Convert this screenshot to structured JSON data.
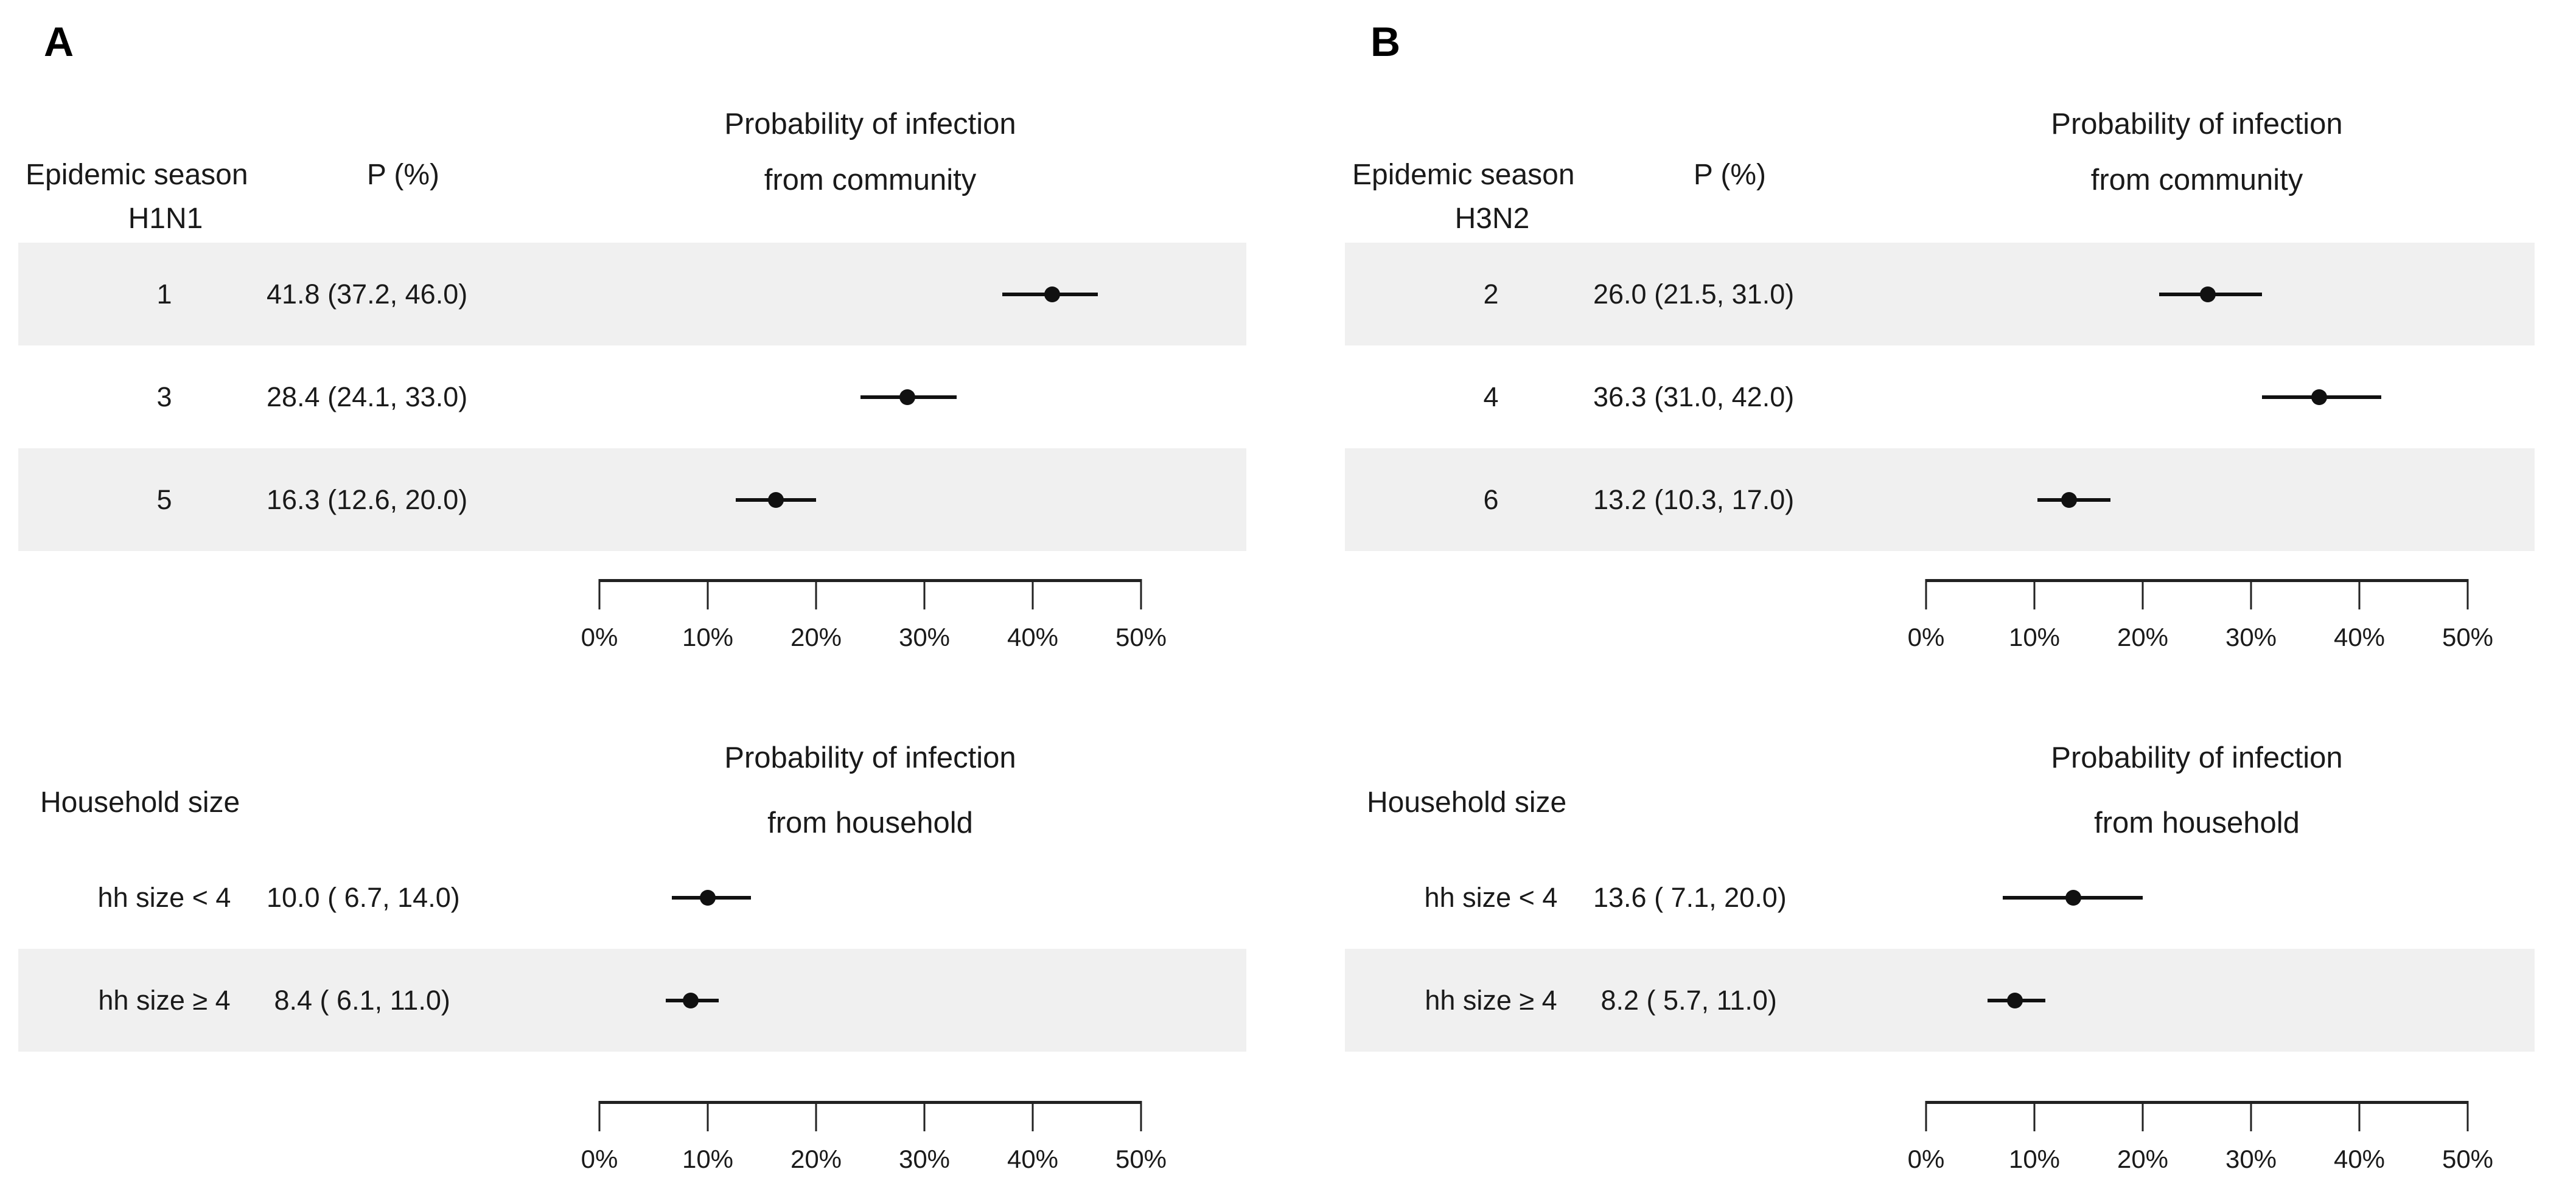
{
  "figure": {
    "axis_max": 50,
    "band_color": "#f0f0f0",
    "panels": [
      {
        "label": "A",
        "sections": [
          {
            "header_left": "Epidemic season",
            "header_right": "P (%)",
            "subheader": "H1N1",
            "title_line1": "Probability of infection",
            "title_line2": "from community",
            "rows": [
              {
                "label": "1",
                "value": "41.8 (37.2, 46.0)",
                "p": 41.8,
                "lo": 37.2,
                "hi": 46.0
              },
              {
                "label": "3",
                "value": "28.4 (24.1, 33.0)",
                "p": 28.4,
                "lo": 24.1,
                "hi": 33.0
              },
              {
                "label": "5",
                "value": "16.3 (12.6, 20.0)",
                "p": 16.3,
                "lo": 12.6,
                "hi": 20.0
              }
            ],
            "ticks": [
              "0%",
              "10%",
              "20%",
              "30%",
              "40%",
              "50%"
            ]
          },
          {
            "header_left": "Household size",
            "title_line1": "Probability of infection",
            "title_line2": "from household",
            "rows": [
              {
                "label": "hh size < 4",
                "value": "10.0 ( 6.7, 14.0)",
                "p": 10.0,
                "lo": 6.7,
                "hi": 14.0
              },
              {
                "label": "hh size ≥ 4",
                "value": " 8.4 ( 6.1, 11.0)",
                "p": 8.4,
                "lo": 6.1,
                "hi": 11.0
              }
            ],
            "ticks": [
              "0%",
              "10%",
              "20%",
              "30%",
              "40%",
              "50%"
            ]
          }
        ]
      },
      {
        "label": "B",
        "sections": [
          {
            "header_left": "Epidemic season",
            "header_right": "P (%)",
            "subheader": "H3N2",
            "title_line1": "Probability of infection",
            "title_line2": "from community",
            "rows": [
              {
                "label": "2",
                "value": "26.0 (21.5, 31.0)",
                "p": 26.0,
                "lo": 21.5,
                "hi": 31.0
              },
              {
                "label": "4",
                "value": "36.3 (31.0, 42.0)",
                "p": 36.3,
                "lo": 31.0,
                "hi": 42.0
              },
              {
                "label": "6",
                "value": "13.2 (10.3, 17.0)",
                "p": 13.2,
                "lo": 10.3,
                "hi": 17.0
              }
            ],
            "ticks": [
              "0%",
              "10%",
              "20%",
              "30%",
              "40%",
              "50%"
            ]
          },
          {
            "header_left": "Household size",
            "title_line1": "Probability of infection",
            "title_line2": "from household",
            "rows": [
              {
                "label": "hh size < 4",
                "value": "13.6 ( 7.1, 20.0)",
                "p": 13.6,
                "lo": 7.1,
                "hi": 20.0
              },
              {
                "label": "hh size ≥ 4",
                "value": " 8.2 ( 5.7, 11.0)",
                "p": 8.2,
                "lo": 5.7,
                "hi": 11.0
              }
            ],
            "ticks": [
              "0%",
              "10%",
              "20%",
              "30%",
              "40%",
              "50%"
            ]
          }
        ]
      }
    ]
  },
  "chart_data": [
    {
      "type": "scatter",
      "panel": "A",
      "group": "Epidemic season H1N1",
      "title": "Probability of infection from community",
      "categories": [
        "1",
        "3",
        "5"
      ],
      "values": [
        41.8,
        28.4,
        16.3
      ],
      "ci_low": [
        37.2,
        24.1,
        12.6
      ],
      "ci_high": [
        46.0,
        33.0,
        20.0
      ],
      "xlim": [
        0,
        50
      ],
      "x_ticks": [
        "0%",
        "10%",
        "20%",
        "30%",
        "40%",
        "50%"
      ],
      "orientation": "horizontal",
      "marker": "filled-circle-with-error-bars",
      "grid": false
    },
    {
      "type": "scatter",
      "panel": "A",
      "group": "Household size",
      "title": "Probability of infection from household",
      "categories": [
        "hh size < 4",
        "hh size ≥ 4"
      ],
      "values": [
        10.0,
        8.4
      ],
      "ci_low": [
        6.7,
        6.1
      ],
      "ci_high": [
        14.0,
        11.0
      ],
      "xlim": [
        0,
        50
      ],
      "x_ticks": [
        "0%",
        "10%",
        "20%",
        "30%",
        "40%",
        "50%"
      ],
      "orientation": "horizontal",
      "marker": "filled-circle-with-error-bars",
      "grid": false
    },
    {
      "type": "scatter",
      "panel": "B",
      "group": "Epidemic season H3N2",
      "title": "Probability of infection from community",
      "categories": [
        "2",
        "4",
        "6"
      ],
      "values": [
        26.0,
        36.3,
        13.2
      ],
      "ci_low": [
        21.5,
        31.0,
        10.3
      ],
      "ci_high": [
        31.0,
        42.0,
        17.0
      ],
      "xlim": [
        0,
        50
      ],
      "x_ticks": [
        "0%",
        "10%",
        "20%",
        "30%",
        "40%",
        "50%"
      ],
      "orientation": "horizontal",
      "marker": "filled-circle-with-error-bars",
      "grid": false
    },
    {
      "type": "scatter",
      "panel": "B",
      "group": "Household size",
      "title": "Probability of infection from household",
      "categories": [
        "hh size < 4",
        "hh size ≥ 4"
      ],
      "values": [
        13.6,
        8.2
      ],
      "ci_low": [
        7.1,
        5.7
      ],
      "ci_high": [
        20.0,
        11.0
      ],
      "xlim": [
        0,
        50
      ],
      "x_ticks": [
        "0%",
        "10%",
        "20%",
        "30%",
        "40%",
        "50%"
      ],
      "orientation": "horizontal",
      "marker": "filled-circle-with-error-bars",
      "grid": false
    }
  ]
}
